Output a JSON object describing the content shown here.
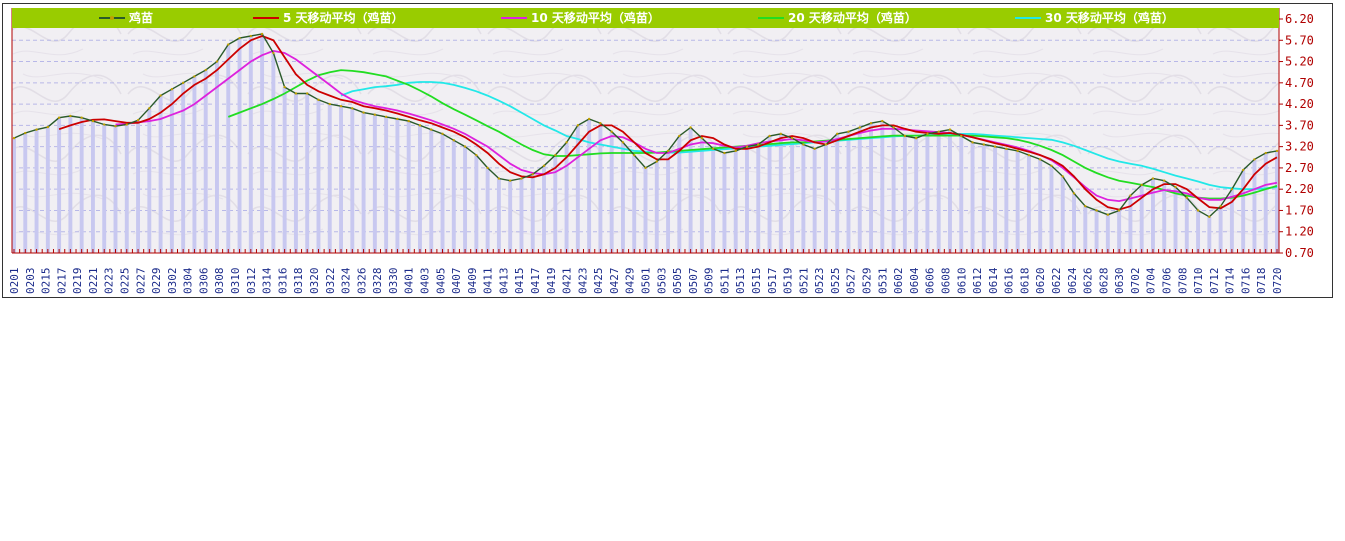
{
  "chart_data": {
    "type": "line",
    "ylim": [
      0.7,
      6.2
    ],
    "yticks": [
      "6.20",
      "5.70",
      "5.20",
      "4.70",
      "4.20",
      "3.70",
      "3.20",
      "2.70",
      "2.20",
      "1.70",
      "1.20",
      "0.70"
    ],
    "xticks": [
      "0201",
      "0203",
      "0215",
      "0217",
      "0219",
      "0221",
      "0223",
      "0225",
      "0227",
      "0229",
      "0302",
      "0304",
      "0306",
      "0308",
      "0310",
      "0312",
      "0314",
      "0316",
      "0318",
      "0320",
      "0322",
      "0324",
      "0326",
      "0328",
      "0330",
      "0401",
      "0403",
      "0405",
      "0407",
      "0409",
      "0411",
      "0413",
      "0415",
      "0417",
      "0419",
      "0421",
      "0423",
      "0425",
      "0427",
      "0429",
      "0501",
      "0503",
      "0505",
      "0507",
      "0509",
      "0511",
      "0513",
      "0515",
      "0517",
      "0519",
      "0521",
      "0523",
      "0525",
      "0527",
      "0529",
      "0531",
      "0602",
      "0604",
      "0606",
      "0608",
      "0610",
      "0612",
      "0614",
      "0616",
      "0618",
      "0620",
      "0622",
      "0624",
      "0626",
      "0628",
      "0630",
      "0702",
      "0704",
      "0706",
      "0708",
      "0710",
      "0712",
      "0714",
      "0716",
      "0718",
      "0720"
    ],
    "legend": [
      "鸡苗",
      "5 天移动平均（鸡苗）",
      "10 天移动平均（鸡苗）",
      "20 天移动平均（鸡苗）",
      "30 天移动平均（鸡苗）"
    ],
    "colors": {
      "legend_bg": "#99cc00",
      "bars": "#c8c8f0",
      "price": "#2a5a2a",
      "ma5": "#cc0000",
      "ma10": "#dd22dd",
      "ma20": "#22dd22",
      "ma30": "#22e8e8",
      "axis_text_y": "#b00000",
      "axis_text_x": "#1a2a8a"
    },
    "series": [
      {
        "name": "鸡苗",
        "key": "price",
        "values": [
          3.4,
          3.52,
          3.6,
          3.66,
          3.88,
          3.92,
          3.88,
          3.8,
          3.72,
          3.68,
          3.72,
          3.82,
          4.1,
          4.4,
          4.55,
          4.7,
          4.85,
          5.0,
          5.2,
          5.6,
          5.75,
          5.8,
          5.85,
          5.4,
          4.6,
          4.45,
          4.45,
          4.3,
          4.2,
          4.15,
          4.1,
          4.0,
          3.95,
          3.9,
          3.85,
          3.8,
          3.7,
          3.6,
          3.5,
          3.35,
          3.2,
          3.0,
          2.7,
          2.45,
          2.4,
          2.45,
          2.55,
          2.75,
          3.0,
          3.3,
          3.7,
          3.85,
          3.75,
          3.55,
          3.3,
          3.0,
          2.7,
          2.85,
          3.1,
          3.45,
          3.65,
          3.4,
          3.15,
          3.05,
          3.1,
          3.2,
          3.25,
          3.45,
          3.5,
          3.4,
          3.25,
          3.15,
          3.25,
          3.5,
          3.55,
          3.65,
          3.75,
          3.8,
          3.65,
          3.45,
          3.4,
          3.5,
          3.55,
          3.6,
          3.45,
          3.3,
          3.25,
          3.2,
          3.15,
          3.1,
          3.0,
          2.9,
          2.75,
          2.5,
          2.1,
          1.8,
          1.7,
          1.6,
          1.7,
          2.05,
          2.3,
          2.45,
          2.4,
          2.25,
          2.0,
          1.7,
          1.55,
          1.8,
          2.2,
          2.65,
          2.9,
          3.05,
          3.1
        ]
      },
      {
        "name": "5 天移动平均（鸡苗）",
        "key": "ma5",
        "values": [
          null,
          null,
          null,
          null,
          3.61,
          3.7,
          3.78,
          3.83,
          3.84,
          3.8,
          3.76,
          3.76,
          3.85,
          4.0,
          4.2,
          4.45,
          4.65,
          4.8,
          5.0,
          5.25,
          5.5,
          5.7,
          5.8,
          5.7,
          5.3,
          4.9,
          4.65,
          4.5,
          4.4,
          4.3,
          4.25,
          4.15,
          4.1,
          4.05,
          3.98,
          3.9,
          3.82,
          3.75,
          3.65,
          3.55,
          3.42,
          3.25,
          3.05,
          2.8,
          2.6,
          2.5,
          2.48,
          2.55,
          2.7,
          2.95,
          3.25,
          3.55,
          3.7,
          3.7,
          3.55,
          3.3,
          3.05,
          2.9,
          2.9,
          3.1,
          3.35,
          3.45,
          3.4,
          3.25,
          3.15,
          3.15,
          3.2,
          3.3,
          3.4,
          3.45,
          3.4,
          3.3,
          3.25,
          3.35,
          3.45,
          3.55,
          3.65,
          3.7,
          3.7,
          3.62,
          3.55,
          3.52,
          3.5,
          3.52,
          3.48,
          3.42,
          3.35,
          3.28,
          3.22,
          3.15,
          3.08,
          3.0,
          2.9,
          2.75,
          2.5,
          2.2,
          1.95,
          1.78,
          1.72,
          1.8,
          2.0,
          2.2,
          2.32,
          2.32,
          2.2,
          1.98,
          1.78,
          1.75,
          1.9,
          2.2,
          2.55,
          2.8,
          2.95
        ]
      },
      {
        "name": "10 天移动平均（鸡苗）",
        "key": "ma10",
        "values": [
          null,
          null,
          null,
          null,
          null,
          null,
          null,
          null,
          null,
          3.72,
          3.74,
          3.77,
          3.8,
          3.85,
          3.95,
          4.05,
          4.2,
          4.4,
          4.6,
          4.8,
          5.0,
          5.2,
          5.35,
          5.45,
          5.4,
          5.25,
          5.05,
          4.85,
          4.65,
          4.45,
          4.3,
          4.22,
          4.15,
          4.1,
          4.05,
          3.98,
          3.9,
          3.82,
          3.72,
          3.62,
          3.5,
          3.35,
          3.2,
          3.0,
          2.8,
          2.65,
          2.58,
          2.55,
          2.6,
          2.75,
          2.95,
          3.15,
          3.35,
          3.45,
          3.42,
          3.3,
          3.15,
          3.05,
          3.05,
          3.15,
          3.25,
          3.3,
          3.28,
          3.22,
          3.18,
          3.22,
          3.28,
          3.32,
          3.35,
          3.38,
          3.35,
          3.3,
          3.32,
          3.38,
          3.45,
          3.52,
          3.58,
          3.62,
          3.62,
          3.6,
          3.58,
          3.56,
          3.54,
          3.52,
          3.48,
          3.42,
          3.36,
          3.3,
          3.24,
          3.18,
          3.1,
          3.0,
          2.88,
          2.7,
          2.48,
          2.25,
          2.05,
          1.95,
          1.92,
          1.98,
          2.05,
          2.12,
          2.18,
          2.15,
          2.1,
          2.0,
          1.95,
          1.95,
          2.02,
          2.1,
          2.2,
          2.3,
          2.35
        ]
      },
      {
        "name": "20 天移动平均（鸡苗）",
        "key": "ma20",
        "values": [
          null,
          null,
          null,
          null,
          null,
          null,
          null,
          null,
          null,
          null,
          null,
          null,
          null,
          null,
          null,
          null,
          null,
          null,
          null,
          3.9,
          4.0,
          4.1,
          4.2,
          4.32,
          4.45,
          4.6,
          4.75,
          4.88,
          4.95,
          5.0,
          4.98,
          4.95,
          4.9,
          4.85,
          4.75,
          4.65,
          4.52,
          4.38,
          4.22,
          4.08,
          3.95,
          3.82,
          3.68,
          3.55,
          3.4,
          3.25,
          3.12,
          3.02,
          2.98,
          2.98,
          3.0,
          3.02,
          3.04,
          3.05,
          3.05,
          3.05,
          3.05,
          3.06,
          3.08,
          3.1,
          3.12,
          3.14,
          3.16,
          3.18,
          3.2,
          3.22,
          3.24,
          3.26,
          3.28,
          3.3,
          3.3,
          3.32,
          3.34,
          3.36,
          3.38,
          3.4,
          3.42,
          3.44,
          3.46,
          3.46,
          3.46,
          3.46,
          3.46,
          3.46,
          3.46,
          3.46,
          3.44,
          3.42,
          3.4,
          3.36,
          3.3,
          3.22,
          3.12,
          3.0,
          2.85,
          2.7,
          2.58,
          2.48,
          2.4,
          2.35,
          2.3,
          2.25,
          2.18,
          2.1,
          2.05,
          2.0,
          1.98,
          1.98,
          2.0,
          2.05,
          2.12,
          2.2,
          2.28
        ]
      },
      {
        "name": "30 天移动平均（鸡苗）",
        "key": "ma30",
        "values": [
          null,
          null,
          null,
          null,
          null,
          null,
          null,
          null,
          null,
          null,
          null,
          null,
          null,
          null,
          null,
          null,
          null,
          null,
          null,
          null,
          null,
          null,
          null,
          null,
          null,
          null,
          null,
          null,
          null,
          4.4,
          4.5,
          4.55,
          4.6,
          4.62,
          4.65,
          4.7,
          4.72,
          4.72,
          4.7,
          4.65,
          4.58,
          4.5,
          4.4,
          4.28,
          4.15,
          4.0,
          3.85,
          3.7,
          3.58,
          3.45,
          3.38,
          3.3,
          3.25,
          3.2,
          3.15,
          3.1,
          3.08,
          3.06,
          3.06,
          3.06,
          3.08,
          3.1,
          3.12,
          3.14,
          3.16,
          3.18,
          3.2,
          3.22,
          3.24,
          3.26,
          3.28,
          3.3,
          3.32,
          3.34,
          3.36,
          3.38,
          3.4,
          3.42,
          3.44,
          3.45,
          3.46,
          3.47,
          3.48,
          3.49,
          3.5,
          3.5,
          3.48,
          3.46,
          3.44,
          3.42,
          3.4,
          3.38,
          3.36,
          3.3,
          3.22,
          3.12,
          3.02,
          2.92,
          2.85,
          2.8,
          2.75,
          2.68,
          2.6,
          2.52,
          2.45,
          2.38,
          2.3,
          2.25,
          2.22,
          2.2,
          2.2,
          2.22,
          2.25
        ]
      }
    ]
  }
}
